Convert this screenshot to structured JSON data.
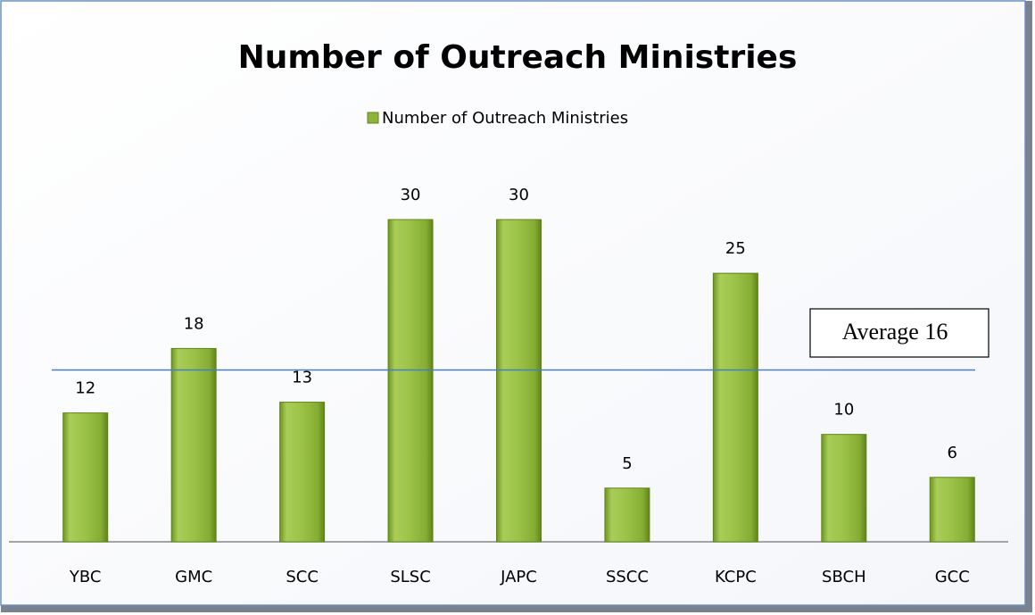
{
  "chart_data": {
    "type": "bar",
    "title": "Number of Outreach Ministries",
    "categories": [
      "YBC",
      "GMC",
      "SCC",
      "SLSC",
      "JAPC",
      "SSCC",
      "KCPC",
      "SBCH",
      "GCC"
    ],
    "series": [
      {
        "name": "Number of Outreach Ministries",
        "color": "#8cb43a",
        "values": [
          12,
          18,
          13,
          30,
          30,
          5,
          25,
          10,
          6
        ]
      }
    ],
    "average": 16,
    "annotation": "Average 16",
    "legend": "top"
  }
}
